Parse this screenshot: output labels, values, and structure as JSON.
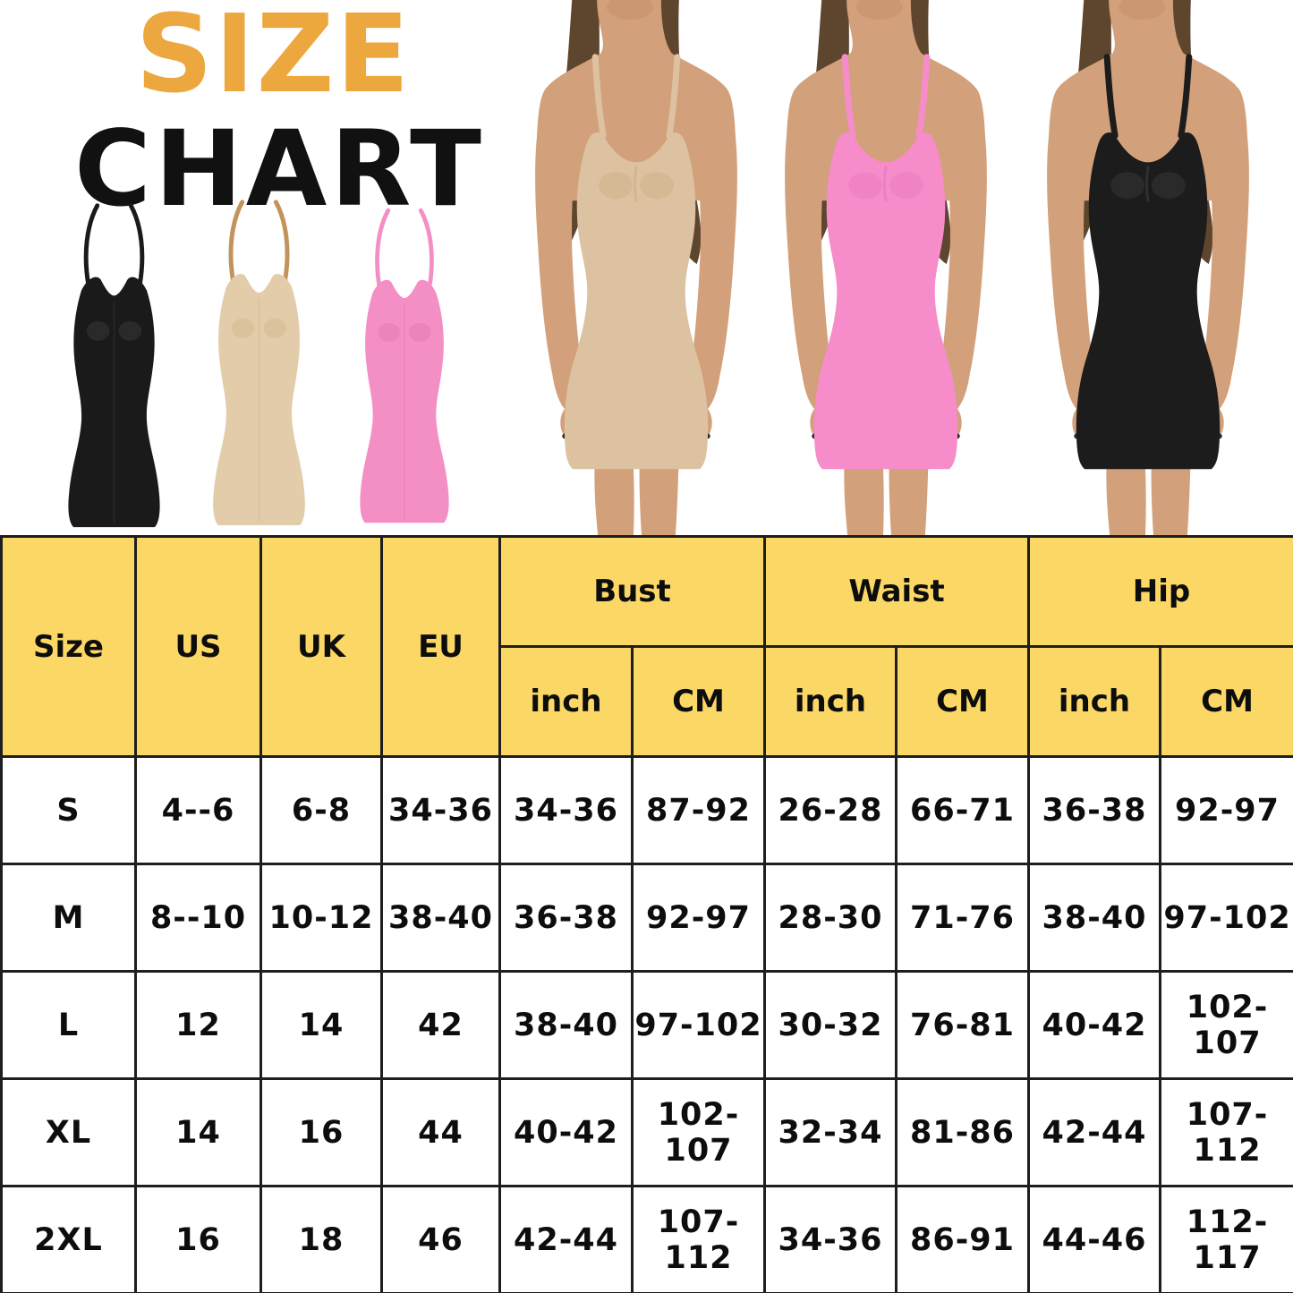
{
  "title": {
    "size_word": "SIZE",
    "chart_word": "CHART"
  },
  "palette": {
    "title_orange": "#ECA83E",
    "title_black": "#111111",
    "header_yellow": "#FBD765",
    "grid_line": "#1E1E1E",
    "skin": "#D2A07A",
    "skin_shade": "#B87D52",
    "hair": "#5E452E",
    "nail": "#2B2B2B"
  },
  "products": [
    {
      "name": "black-slip-dress",
      "dress": "#1A1A1A",
      "shade": "#4A4A4A",
      "strap": "#1A1A1A"
    },
    {
      "name": "nude-slip-dress",
      "dress": "#E3CCA9",
      "shade": "#C9AE84",
      "strap": "#C2935B"
    },
    {
      "name": "pink-slip-dress",
      "dress": "#F48FC5",
      "shade": "#DE6FA9",
      "strap": "#F48FC5"
    }
  ],
  "models": [
    {
      "name": "model-nude-dress",
      "dress": "#DCC2A0",
      "shade": "#C3A67E"
    },
    {
      "name": "model-pink-dress",
      "dress": "#F78CCB",
      "shade": "#E06FB2"
    },
    {
      "name": "model-black-dress",
      "dress": "#1C1C1C",
      "shade": "#4D4D4D"
    }
  ],
  "chart_data": {
    "type": "table",
    "title": "SIZE CHART",
    "columns": [
      "Size",
      "US",
      "UK",
      "EU",
      "Bust inch",
      "Bust CM",
      "Waist inch",
      "Waist CM",
      "Hip inch",
      "Hip CM"
    ],
    "header": {
      "single": [
        "Size",
        "US",
        "UK",
        "EU"
      ],
      "groups": [
        {
          "label": "Bust",
          "subs": [
            "inch",
            "CM"
          ]
        },
        {
          "label": "Waist",
          "subs": [
            "inch",
            "CM"
          ]
        },
        {
          "label": "Hip",
          "subs": [
            "inch",
            "CM"
          ]
        }
      ]
    },
    "rows": [
      [
        "S",
        "4--6",
        "6-8",
        "34-36",
        "34-36",
        "87-92",
        "26-28",
        "66-71",
        "36-38",
        "92-97"
      ],
      [
        "M",
        "8--10",
        "10-12",
        "38-40",
        "36-38",
        "92-97",
        "28-30",
        "71-76",
        "38-40",
        "97-102"
      ],
      [
        "L",
        "12",
        "14",
        "42",
        "38-40",
        "97-102",
        "30-32",
        "76-81",
        "40-42",
        "102-107"
      ],
      [
        "XL",
        "14",
        "16",
        "44",
        "40-42",
        "102-107",
        "32-34",
        "81-86",
        "42-44",
        "107-112"
      ],
      [
        "2XL",
        "16",
        "18",
        "46",
        "42-44",
        "107-112",
        "34-36",
        "86-91",
        "44-46",
        "112-117"
      ]
    ]
  }
}
